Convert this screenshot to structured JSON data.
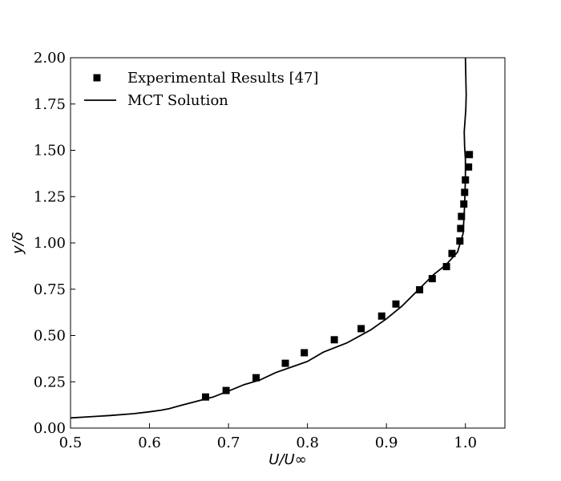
{
  "chart_data": {
    "type": "line",
    "title": "",
    "xlabel": "U/U∞",
    "ylabel": "y/δ",
    "xlim": [
      0.5,
      1.05
    ],
    "ylim": [
      0.0,
      2.0
    ],
    "x_ticks": [
      0.5,
      0.6,
      0.7,
      0.8,
      0.9,
      1.0
    ],
    "x_tick_labels": [
      "0.5",
      "0.6",
      "0.7",
      "0.8",
      "0.9",
      "1.0"
    ],
    "y_ticks": [
      0.0,
      0.25,
      0.5,
      0.75,
      1.0,
      1.25,
      1.5,
      1.75,
      2.0
    ],
    "y_tick_labels": [
      "0.00",
      "0.25",
      "0.50",
      "0.75",
      "1.00",
      "1.25",
      "1.50",
      "1.75",
      "2.00"
    ],
    "grid": false,
    "legend_position": "top-left",
    "series": [
      {
        "name": "Experimental Results [47]",
        "kind": "scatter",
        "marker": "square",
        "color": "#000000",
        "x": [
          0.671,
          0.697,
          0.735,
          0.772,
          0.796,
          0.834,
          0.868,
          0.894,
          0.912,
          0.942,
          0.958,
          0.976,
          0.983,
          0.993,
          0.994,
          0.995,
          0.998,
          0.999,
          1.0,
          1.004,
          1.005
        ],
        "y": [
          0.168,
          0.203,
          0.272,
          0.35,
          0.407,
          0.477,
          0.537,
          0.605,
          0.67,
          0.747,
          0.807,
          0.872,
          0.943,
          1.01,
          1.078,
          1.143,
          1.21,
          1.273,
          1.34,
          1.41,
          1.477
        ]
      },
      {
        "name": "MCT Solution",
        "kind": "line",
        "color": "#000000",
        "x": [
          0.5,
          0.52,
          0.55,
          0.58,
          0.6,
          0.615,
          0.625,
          0.64,
          0.66,
          0.68,
          0.7,
          0.72,
          0.74,
          0.76,
          0.78,
          0.8,
          0.82,
          0.85,
          0.88,
          0.9,
          0.92,
          0.94,
          0.96,
          0.975,
          0.99,
          0.997,
          0.999,
          1.0,
          1.0,
          0.999,
          0.9985,
          0.9995,
          1.0005,
          1.001,
          1.0005,
          1.0
        ],
        "y": [
          0.055,
          0.06,
          0.068,
          0.078,
          0.088,
          0.097,
          0.105,
          0.123,
          0.145,
          0.167,
          0.2,
          0.235,
          0.26,
          0.3,
          0.33,
          0.36,
          0.41,
          0.46,
          0.53,
          0.59,
          0.66,
          0.745,
          0.83,
          0.88,
          0.95,
          1.05,
          1.2,
          1.35,
          1.45,
          1.52,
          1.6,
          1.66,
          1.72,
          1.8,
          1.9,
          2.0
        ]
      }
    ]
  }
}
